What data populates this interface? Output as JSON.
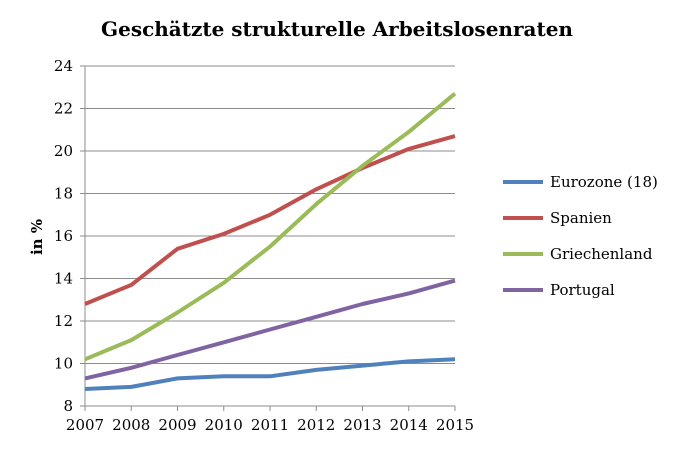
{
  "chart_data": {
    "type": "line",
    "title": "Geschätzte strukturelle Arbeitslosenraten",
    "xlabel": "",
    "ylabel": "in %",
    "categories": [
      "2007",
      "2008",
      "2009",
      "2010",
      "2011",
      "2012",
      "2013",
      "2014",
      "2015"
    ],
    "ylim": [
      8,
      24
    ],
    "yticks": [
      8,
      10,
      12,
      14,
      16,
      18,
      20,
      22,
      24
    ],
    "grid": true,
    "legend_position": "right",
    "series": [
      {
        "name": "Eurozone (18)",
        "color": "#4f81bd",
        "values": [
          8.8,
          8.9,
          9.3,
          9.4,
          9.4,
          9.7,
          9.9,
          10.1,
          10.2
        ]
      },
      {
        "name": "Spanien",
        "color": "#c0504d",
        "values": [
          12.8,
          13.7,
          15.4,
          16.1,
          17.0,
          18.2,
          19.2,
          20.1,
          20.7
        ]
      },
      {
        "name": "Griechenland",
        "color": "#9bbb59",
        "values": [
          10.2,
          11.1,
          12.4,
          13.8,
          15.5,
          17.5,
          19.3,
          20.9,
          22.7
        ]
      },
      {
        "name": "Portugal",
        "color": "#8064a2",
        "values": [
          9.3,
          9.8,
          10.4,
          11.0,
          11.6,
          12.2,
          12.8,
          13.3,
          13.9
        ]
      }
    ]
  }
}
